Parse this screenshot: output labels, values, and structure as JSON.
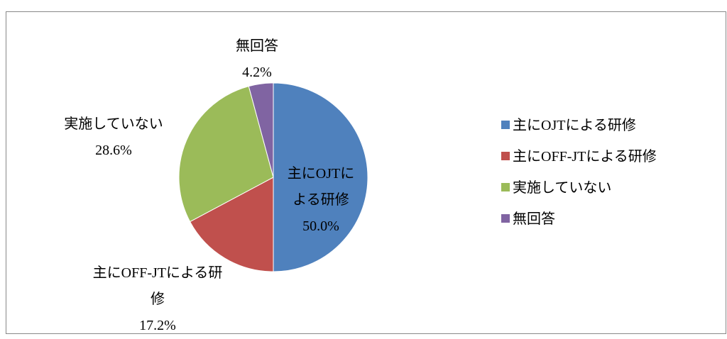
{
  "chart_data": {
    "type": "pie",
    "categories": [
      "主にOJTによる研修",
      "主にOFF-JTによる研修",
      "実施していない",
      "無回答"
    ],
    "values": [
      50.0,
      17.2,
      28.6,
      4.2
    ],
    "value_labels": [
      "50.0%",
      "17.2%",
      "28.6%",
      "4.2%"
    ],
    "colors": [
      "#4f81bd",
      "#c0504d",
      "#9bbb59",
      "#8064a2"
    ],
    "legend": "right"
  }
}
